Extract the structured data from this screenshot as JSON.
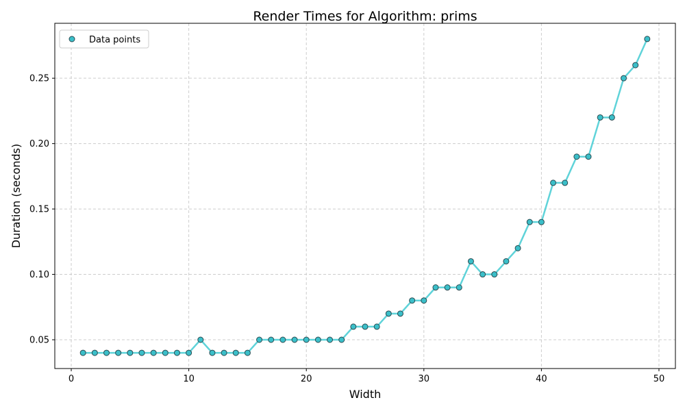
{
  "chart_data": {
    "type": "line",
    "title": "Render Times for Algorithm: prims",
    "xlabel": "Width",
    "ylabel": "Duration (seconds)",
    "xlim": [
      -1.4,
      51.4
    ],
    "ylim": [
      0.028,
      0.292
    ],
    "xticks": [
      0,
      10,
      20,
      30,
      40,
      50
    ],
    "yticks": [
      0.05,
      0.1,
      0.15,
      0.2,
      0.25
    ],
    "grid": true,
    "legend_position": "top-left",
    "line_color": "#5fd3d9",
    "marker_color": "#3bbfc9",
    "marker_edge_color": "#2b4a50",
    "series": [
      {
        "name": "Data points",
        "x": [
          1,
          2,
          3,
          4,
          5,
          6,
          7,
          8,
          9,
          10,
          11,
          12,
          13,
          14,
          15,
          16,
          17,
          18,
          19,
          20,
          21,
          22,
          23,
          24,
          25,
          26,
          27,
          28,
          29,
          30,
          31,
          32,
          33,
          34,
          35,
          36,
          37,
          38,
          39,
          40,
          41,
          42,
          43,
          44,
          45,
          46,
          47,
          48,
          49
        ],
        "y": [
          0.04,
          0.04,
          0.04,
          0.04,
          0.04,
          0.04,
          0.04,
          0.04,
          0.04,
          0.04,
          0.05,
          0.04,
          0.04,
          0.04,
          0.04,
          0.05,
          0.05,
          0.05,
          0.05,
          0.05,
          0.05,
          0.05,
          0.05,
          0.06,
          0.06,
          0.06,
          0.07,
          0.07,
          0.08,
          0.08,
          0.09,
          0.09,
          0.09,
          0.11,
          0.1,
          0.1,
          0.11,
          0.12,
          0.14,
          0.14,
          0.17,
          0.17,
          0.19,
          0.19,
          0.22,
          0.22,
          0.25,
          0.26,
          0.28
        ]
      }
    ]
  }
}
